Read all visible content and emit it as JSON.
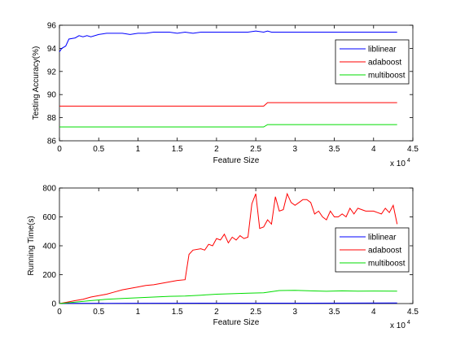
{
  "chart_data": [
    {
      "type": "line",
      "xlabel": "Feature Size",
      "ylabel": "Testing Accuracy(%)",
      "xlim": [
        0,
        45000
      ],
      "ylim": [
        86,
        96
      ],
      "xticks": [
        0,
        0.5,
        1,
        1.5,
        2,
        2.5,
        3,
        3.5,
        4,
        4.5
      ],
      "yticks": [
        86,
        88,
        90,
        92,
        94,
        96
      ],
      "x_multiplier_base": "x 10",
      "x_multiplier_exp": "4",
      "legend_position": "top-right",
      "grid": false,
      "series": [
        {
          "name": "liblinear",
          "color": "#0000ff",
          "points": [
            [
              0,
              93.7
            ],
            [
              300,
              94.0
            ],
            [
              800,
              94.2
            ],
            [
              1200,
              94.8
            ],
            [
              2000,
              94.9
            ],
            [
              2500,
              95.1
            ],
            [
              3000,
              95.0
            ],
            [
              3500,
              95.1
            ],
            [
              4000,
              95.0
            ],
            [
              5000,
              95.2
            ],
            [
              6000,
              95.3
            ],
            [
              7000,
              95.3
            ],
            [
              8000,
              95.3
            ],
            [
              9000,
              95.2
            ],
            [
              10000,
              95.3
            ],
            [
              11000,
              95.3
            ],
            [
              12000,
              95.4
            ],
            [
              13000,
              95.4
            ],
            [
              14000,
              95.4
            ],
            [
              15000,
              95.3
            ],
            [
              16000,
              95.4
            ],
            [
              17000,
              95.3
            ],
            [
              18000,
              95.4
            ],
            [
              20000,
              95.4
            ],
            [
              22000,
              95.4
            ],
            [
              24000,
              95.4
            ],
            [
              25000,
              95.5
            ],
            [
              26000,
              95.4
            ],
            [
              26500,
              95.5
            ],
            [
              27000,
              95.4
            ],
            [
              30000,
              95.4
            ],
            [
              35000,
              95.4
            ],
            [
              43000,
              95.4
            ]
          ]
        },
        {
          "name": "adaboost",
          "color": "#ff0000",
          "points": [
            [
              0,
              89.0
            ],
            [
              26000,
              89.0
            ],
            [
              26500,
              89.3
            ],
            [
              43000,
              89.3
            ]
          ]
        },
        {
          "name": "multiboost",
          "color": "#00dd00",
          "points": [
            [
              0,
              87.2
            ],
            [
              26000,
              87.2
            ],
            [
              26500,
              87.4
            ],
            [
              43000,
              87.4
            ]
          ]
        }
      ]
    },
    {
      "type": "line",
      "xlabel": "Feature Size",
      "ylabel": "Running Time(s)",
      "xlim": [
        0,
        45000
      ],
      "ylim": [
        0,
        800
      ],
      "xticks": [
        0,
        0.5,
        1,
        1.5,
        2,
        2.5,
        3,
        3.5,
        4,
        4.5
      ],
      "yticks": [
        0,
        200,
        400,
        600,
        800
      ],
      "x_multiplier_base": "x 10",
      "x_multiplier_exp": "4",
      "legend_position": "right",
      "grid": false,
      "series": [
        {
          "name": "liblinear",
          "color": "#0000ff",
          "points": [
            [
              0,
              1
            ],
            [
              10000,
              2
            ],
            [
              20000,
              3
            ],
            [
              30000,
              3
            ],
            [
              43000,
              4
            ]
          ]
        },
        {
          "name": "adaboost",
          "color": "#ff0000",
          "points": [
            [
              0,
              0
            ],
            [
              1000,
              10
            ],
            [
              2000,
              20
            ],
            [
              3000,
              30
            ],
            [
              4000,
              45
            ],
            [
              5000,
              55
            ],
            [
              6000,
              65
            ],
            [
              7000,
              80
            ],
            [
              8000,
              95
            ],
            [
              9000,
              105
            ],
            [
              10000,
              115
            ],
            [
              11000,
              125
            ],
            [
              12000,
              130
            ],
            [
              13000,
              140
            ],
            [
              14000,
              150
            ],
            [
              15000,
              160
            ],
            [
              16000,
              165
            ],
            [
              16500,
              340
            ],
            [
              17000,
              370
            ],
            [
              18000,
              380
            ],
            [
              18500,
              370
            ],
            [
              19000,
              410
            ],
            [
              19500,
              400
            ],
            [
              20000,
              450
            ],
            [
              20500,
              440
            ],
            [
              21000,
              480
            ],
            [
              21500,
              420
            ],
            [
              22000,
              460
            ],
            [
              22500,
              440
            ],
            [
              23000,
              470
            ],
            [
              23500,
              450
            ],
            [
              24000,
              460
            ],
            [
              24500,
              690
            ],
            [
              25000,
              760
            ],
            [
              25500,
              520
            ],
            [
              26000,
              530
            ],
            [
              26500,
              580
            ],
            [
              27000,
              550
            ],
            [
              27500,
              740
            ],
            [
              28000,
              640
            ],
            [
              28500,
              650
            ],
            [
              29000,
              760
            ],
            [
              29500,
              700
            ],
            [
              30000,
              680
            ],
            [
              30500,
              700
            ],
            [
              31000,
              720
            ],
            [
              31500,
              720
            ],
            [
              32000,
              700
            ],
            [
              32500,
              620
            ],
            [
              33000,
              640
            ],
            [
              33500,
              600
            ],
            [
              34000,
              580
            ],
            [
              34500,
              640
            ],
            [
              35000,
              600
            ],
            [
              35500,
              600
            ],
            [
              36000,
              620
            ],
            [
              36500,
              600
            ],
            [
              37000,
              660
            ],
            [
              37500,
              620
            ],
            [
              38000,
              660
            ],
            [
              38500,
              650
            ],
            [
              39000,
              640
            ],
            [
              39500,
              640
            ],
            [
              40000,
              640
            ],
            [
              40500,
              630
            ],
            [
              41000,
              620
            ],
            [
              41500,
              660
            ],
            [
              42000,
              630
            ],
            [
              42500,
              680
            ],
            [
              43000,
              550
            ]
          ]
        },
        {
          "name": "multiboost",
          "color": "#00dd00",
          "points": [
            [
              0,
              0
            ],
            [
              2000,
              10
            ],
            [
              4000,
              20
            ],
            [
              6000,
              30
            ],
            [
              8000,
              35
            ],
            [
              10000,
              40
            ],
            [
              12000,
              45
            ],
            [
              14000,
              50
            ],
            [
              16000,
              52
            ],
            [
              18000,
              58
            ],
            [
              20000,
              65
            ],
            [
              22000,
              68
            ],
            [
              24000,
              72
            ],
            [
              26000,
              75
            ],
            [
              28000,
              90
            ],
            [
              30000,
              92
            ],
            [
              32000,
              88
            ],
            [
              34000,
              85
            ],
            [
              36000,
              88
            ],
            [
              38000,
              86
            ],
            [
              40000,
              87
            ],
            [
              43000,
              86
            ]
          ]
        }
      ]
    }
  ]
}
